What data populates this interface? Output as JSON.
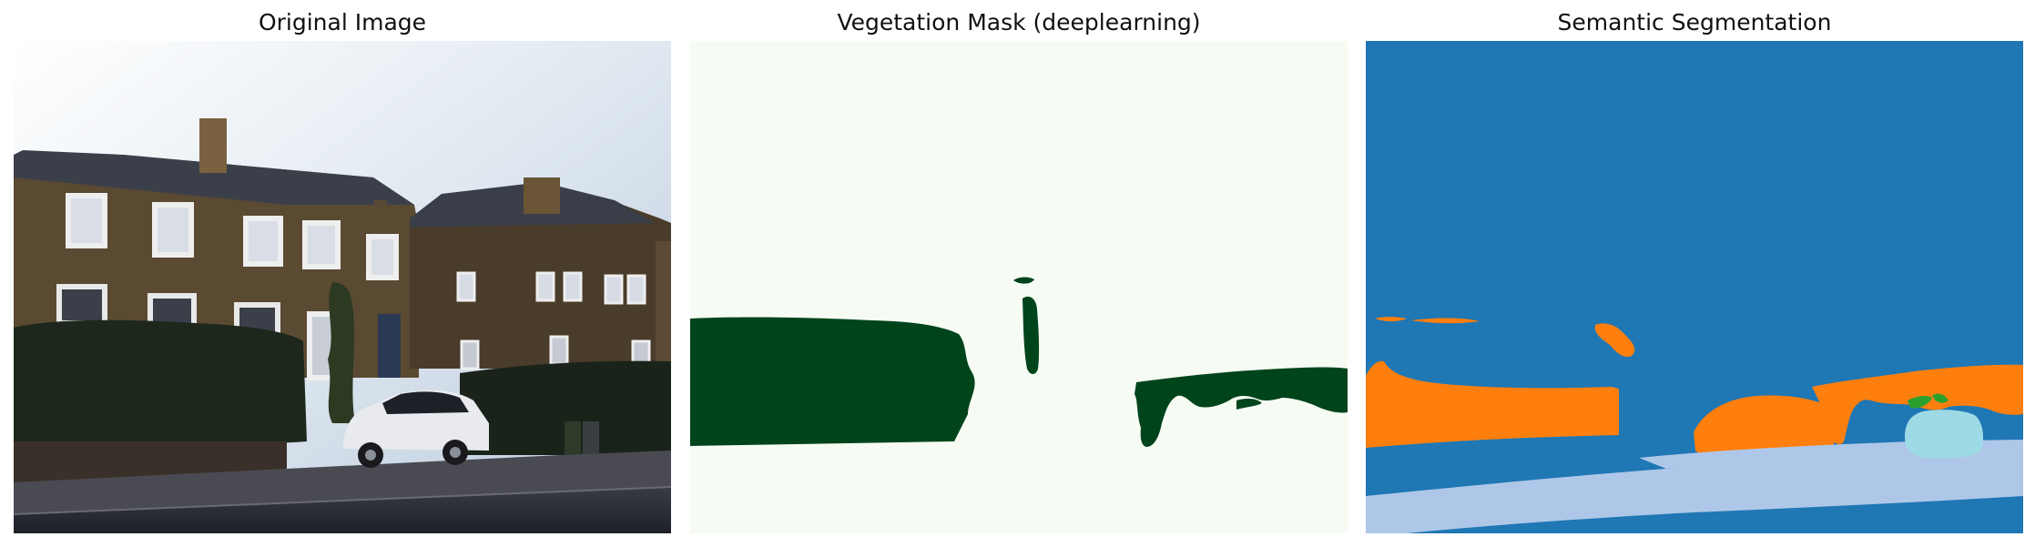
{
  "panels": {
    "original": {
      "title": "Original Image"
    },
    "mask": {
      "title": "Vegetation Mask (deeplearning)"
    },
    "segmentation": {
      "title": "Semantic Segmentation"
    }
  },
  "colors": {
    "mask_background": "#f6fbf3",
    "mask_vegetation": "#00441b",
    "seg_blue": "#1f77b4",
    "seg_orange": "#ff7f0e",
    "seg_light_blue": "#aec7e8",
    "seg_cyan": "#9edae5",
    "seg_green": "#2ca02c"
  }
}
